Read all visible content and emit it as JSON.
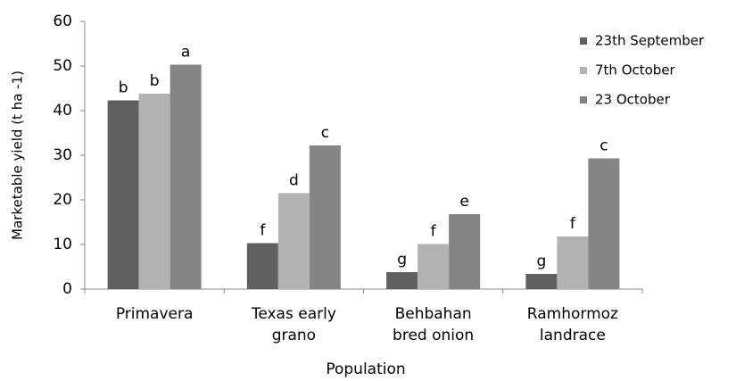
{
  "chart_data": {
    "type": "bar",
    "x_label": "Population",
    "y_label": "Marketable yield  (t ha -1)",
    "categories": [
      [
        "Primavera"
      ],
      [
        "Texas early",
        "grano"
      ],
      [
        "Behbahan",
        "bred onion"
      ],
      [
        "Ramhormoz",
        "landrace"
      ]
    ],
    "series": [
      {
        "name": "23th September",
        "color": "#606060",
        "values": [
          42.3,
          10.3,
          3.8,
          3.4
        ],
        "letters": [
          "b",
          "f",
          "g",
          "g"
        ]
      },
      {
        "name": "7th October",
        "color": "#b3b3b3",
        "values": [
          43.8,
          21.5,
          10.1,
          11.8
        ],
        "letters": [
          "b",
          "d",
          "f",
          "f"
        ]
      },
      {
        "name": "23 October",
        "color": "#858585",
        "values": [
          50.3,
          32.2,
          16.8,
          29.3
        ],
        "letters": [
          "a",
          "c",
          "e",
          "c"
        ]
      }
    ],
    "ylim": [
      0,
      60
    ],
    "yticks": [
      0,
      10,
      20,
      30,
      40,
      50,
      60
    ],
    "grid": false,
    "legend": "upper right"
  }
}
